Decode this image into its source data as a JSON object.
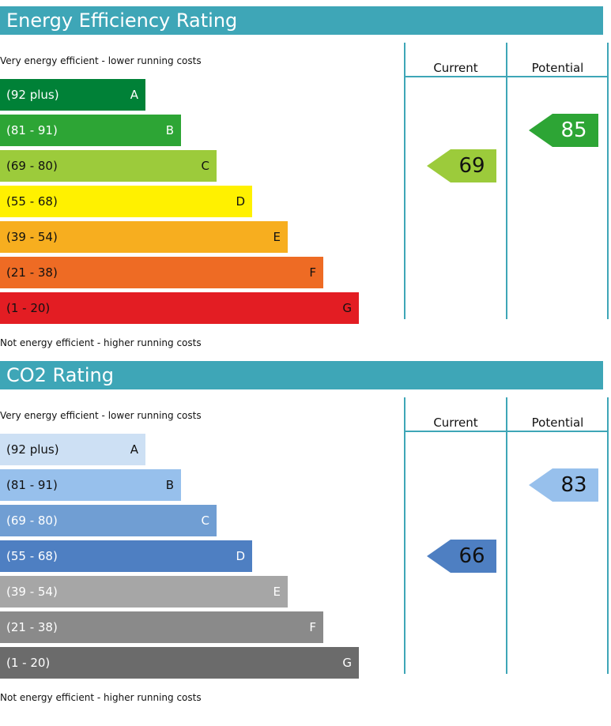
{
  "colors": {
    "header_bar": "#3ea6b7",
    "energy_bands": [
      "#008137",
      "#2da535",
      "#9ccb3b",
      "#fff100",
      "#f7ae1f",
      "#ee6b24",
      "#e31d23"
    ],
    "co2_bands": [
      "#cde0f4",
      "#97c0ec",
      "#709ed3",
      "#4e7fc2",
      "#a6a6a6",
      "#8a8a8a",
      "#6b6b6b"
    ]
  },
  "chart_data": [
    {
      "type": "bar",
      "title": "Energy Efficiency Rating",
      "top_caption": "Very energy efficient - lower running costs",
      "bottom_caption": "Not energy efficient - higher running costs",
      "columns": [
        "Current",
        "Potential"
      ],
      "bands": [
        {
          "range": "(92 plus)",
          "letter": "A",
          "min": 92,
          "max": 100
        },
        {
          "range": "(81 - 91)",
          "letter": "B",
          "min": 81,
          "max": 91
        },
        {
          "range": "(69 - 80)",
          "letter": "C",
          "min": 69,
          "max": 80
        },
        {
          "range": "(55 - 68)",
          "letter": "D",
          "min": 55,
          "max": 68
        },
        {
          "range": "(39 - 54)",
          "letter": "E",
          "min": 39,
          "max": 54
        },
        {
          "range": "(21 - 38)",
          "letter": "F",
          "min": 21,
          "max": 38
        },
        {
          "range": "(1 - 20)",
          "letter": "G",
          "min": 1,
          "max": 20
        }
      ],
      "current": 69,
      "potential": 85
    },
    {
      "type": "bar",
      "title": "CO2 Rating",
      "top_caption": "Very energy efficient - lower running costs",
      "bottom_caption": "Not energy efficient - higher running costs",
      "columns": [
        "Current",
        "Potential"
      ],
      "bands": [
        {
          "range": "(92 plus)",
          "letter": "A",
          "min": 92,
          "max": 100
        },
        {
          "range": "(81 - 91)",
          "letter": "B",
          "min": 81,
          "max": 91
        },
        {
          "range": "(69 - 80)",
          "letter": "C",
          "min": 69,
          "max": 80
        },
        {
          "range": "(55 - 68)",
          "letter": "D",
          "min": 55,
          "max": 68
        },
        {
          "range": "(39 - 54)",
          "letter": "E",
          "min": 39,
          "max": 54
        },
        {
          "range": "(21 - 38)",
          "letter": "F",
          "min": 21,
          "max": 38
        },
        {
          "range": "(1 - 20)",
          "letter": "G",
          "min": 1,
          "max": 20
        }
      ],
      "current": 66,
      "potential": 83
    }
  ]
}
